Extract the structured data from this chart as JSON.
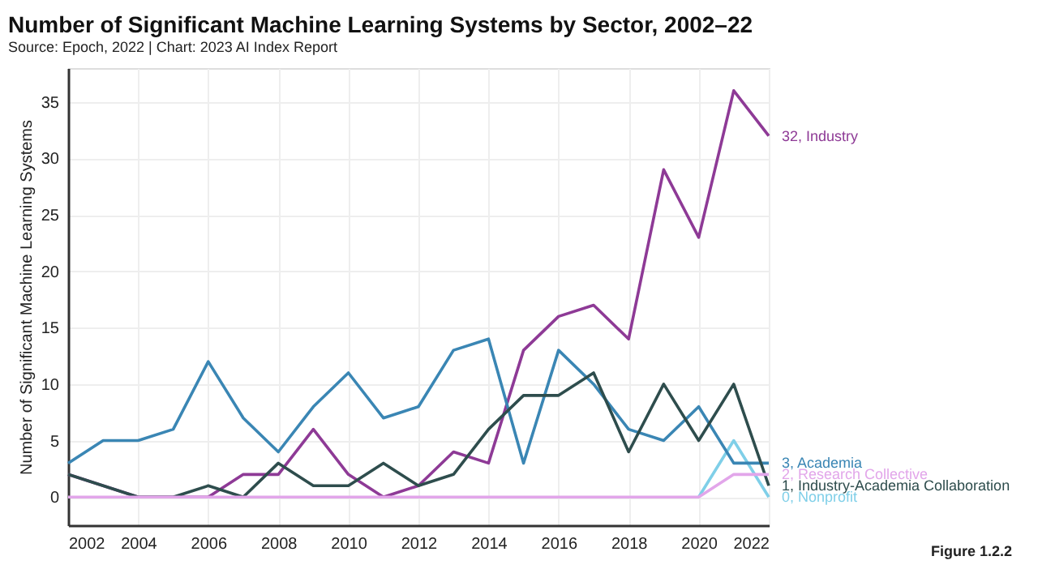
{
  "chart_data": {
    "type": "line",
    "title": "Number of Significant Machine Learning Systems by Sector, 2002–22",
    "subtitle": "Source: Epoch, 2022 | Chart: 2023 AI Index Report",
    "ylabel": "Number of Significant Machine Learning Systems",
    "x": [
      2002,
      2003,
      2004,
      2005,
      2006,
      2007,
      2008,
      2009,
      2010,
      2011,
      2012,
      2013,
      2014,
      2015,
      2016,
      2017,
      2018,
      2019,
      2020,
      2021,
      2022
    ],
    "series": [
      {
        "name": "Nonprofit",
        "color": "#7fcfe8",
        "values": [
          null,
          null,
          null,
          null,
          null,
          null,
          null,
          null,
          null,
          null,
          null,
          null,
          null,
          null,
          null,
          null,
          null,
          null,
          0,
          5,
          0
        ],
        "value_labels": [
          null,
          null,
          null,
          null,
          null,
          null,
          null,
          null,
          null,
          null,
          null,
          null,
          null,
          null,
          null,
          null,
          null,
          null,
          null,
          null,
          "0,"
        ]
      },
      {
        "name": "Industry",
        "color": "#8e3a96",
        "values": [
          2,
          1,
          0,
          0,
          0,
          2,
          2,
          6,
          2,
          0,
          1,
          4,
          3,
          13,
          16,
          17,
          14,
          29,
          23,
          36,
          32
        ],
        "value_labels": [
          null,
          null,
          null,
          null,
          null,
          null,
          null,
          null,
          null,
          null,
          null,
          null,
          null,
          null,
          null,
          null,
          null,
          null,
          null,
          null,
          "32,"
        ]
      },
      {
        "name": "Academia",
        "color": "#3a86b4",
        "values": [
          3,
          5,
          5,
          6,
          12,
          7,
          4,
          8,
          11,
          7,
          8,
          13,
          14,
          3,
          13,
          10,
          6,
          5,
          8,
          3,
          3
        ],
        "value_labels": [
          null,
          null,
          null,
          null,
          null,
          null,
          null,
          null,
          null,
          null,
          null,
          null,
          null,
          null,
          null,
          null,
          null,
          null,
          null,
          null,
          "3,"
        ]
      },
      {
        "name": "Industry-Academia Collaboration",
        "color": "#2e4d4d",
        "values": [
          2,
          1,
          0,
          0,
          1,
          0,
          3,
          1,
          1,
          3,
          1,
          2,
          6,
          9,
          9,
          11,
          4,
          10,
          5,
          10,
          1
        ],
        "value_labels": [
          null,
          null,
          null,
          null,
          null,
          null,
          null,
          null,
          null,
          null,
          null,
          null,
          null,
          null,
          null,
          null,
          null,
          null,
          null,
          null,
          "1,"
        ]
      },
      {
        "name": "Research Collective",
        "color": "#e2a6ea",
        "values": [
          0,
          0,
          0,
          0,
          0,
          0,
          0,
          0,
          0,
          0,
          0,
          0,
          0,
          0,
          0,
          0,
          0,
          0,
          0,
          2,
          2
        ],
        "value_labels": [
          null,
          null,
          null,
          null,
          null,
          null,
          null,
          null,
          null,
          null,
          null,
          null,
          null,
          null,
          null,
          null,
          null,
          null,
          null,
          null,
          "2,"
        ]
      }
    ],
    "xlim": [
      2002,
      2022
    ],
    "xticks": [
      2002,
      2004,
      2006,
      2008,
      2010,
      2012,
      2014,
      2016,
      2018,
      2020,
      2022
    ],
    "ylim": [
      -2.5,
      38
    ],
    "yticks": [
      0,
      5,
      10,
      15,
      20,
      25,
      30,
      35
    ],
    "grid": true,
    "legend": false,
    "marker": "none",
    "line_style": "solid",
    "annotations": [
      "Figure 1.2.2"
    ]
  }
}
